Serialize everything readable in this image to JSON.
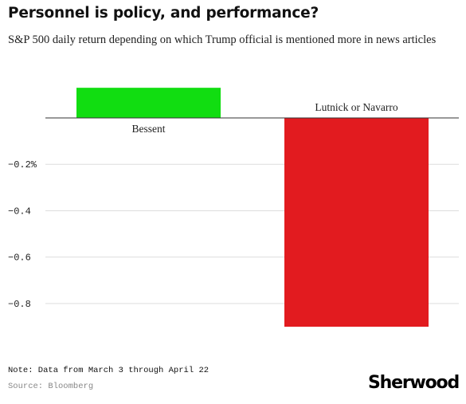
{
  "title": "Personnel is policy, and performance?",
  "subtitle": "S&P 500 daily return depending on which Trump official is mentioned more in news articles",
  "note": "Note: Data from March 3 through April 22",
  "source": "Source: Bloomberg",
  "logo": "Sherwood",
  "chart_data": {
    "type": "bar",
    "categories": [
      "Bessent",
      "Lutnick or Navarro"
    ],
    "values": [
      0.13,
      -0.9
    ],
    "ylim": [
      -0.95,
      0.15
    ],
    "yticks": [
      -0.2,
      -0.4,
      -0.6,
      -0.8
    ],
    "ytick_labels": [
      "−0.2%",
      "−0.4",
      "−0.6",
      "−0.8"
    ],
    "colors": [
      "#11dd11",
      "#e21b1f"
    ],
    "grid": true,
    "xlabel": "",
    "ylabel": ""
  }
}
